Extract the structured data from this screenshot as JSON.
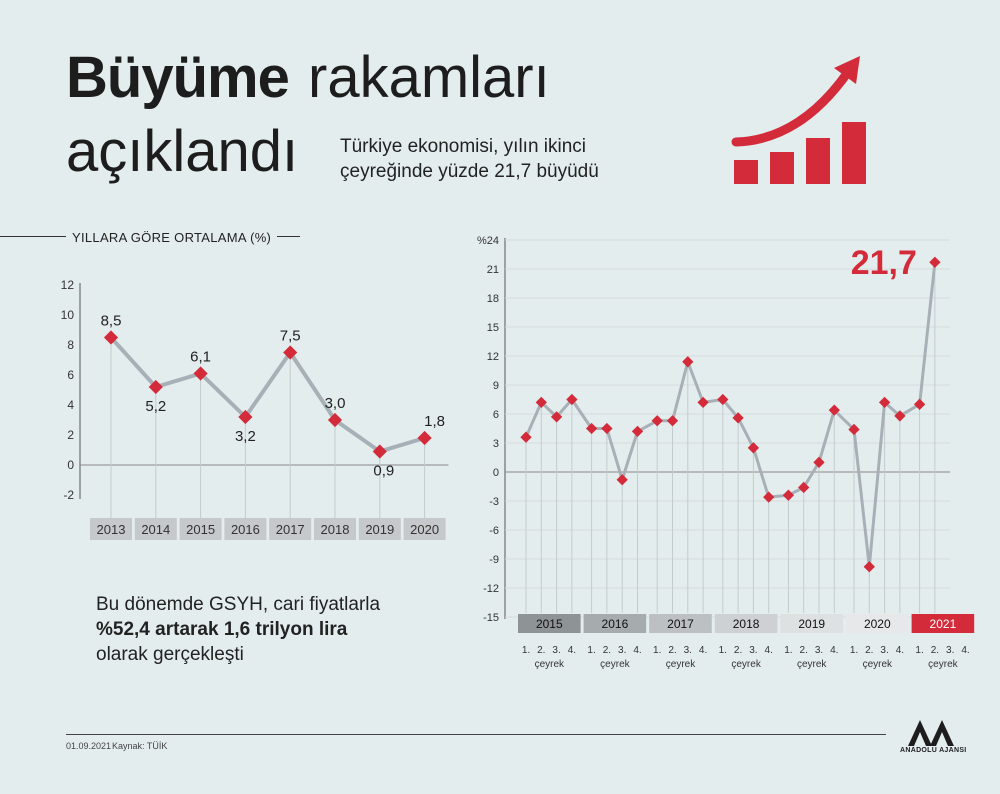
{
  "header": {
    "title_bold": "Büyüme",
    "title_light": "rakamları",
    "title_line2": "açıklandı",
    "subtitle_line1": "Türkiye ekonomisi, yılın ikinci",
    "subtitle_line2": "çeyreğinde yüzde 21,7 büyüdü"
  },
  "section_label": "YILLARA GÖRE ORTALAMA (%)",
  "note": {
    "part1": "Bu dönemde GSYH, cari fiyatlarla ",
    "bold1": "%52,4 artarak 1,6 trilyon lira",
    "part2": " olarak gerçekleşti"
  },
  "footer": {
    "date": "01.09.2021",
    "source": "Kaynak: TÜİK"
  },
  "logo": {
    "text": "ANADOLU AJANSI"
  },
  "colors": {
    "accent": "#d42b3b",
    "line": "#a7b0b6",
    "marker": "#d42b3b",
    "background": "#e4edee"
  },
  "icon": "growth-bars-arrow-icon",
  "chart_data": [
    {
      "type": "line",
      "title": "YILLARA GÖRE ORTALAMA (%)",
      "categories": [
        "2013",
        "2014",
        "2015",
        "2016",
        "2017",
        "2018",
        "2019",
        "2020"
      ],
      "values": [
        8.5,
        5.2,
        6.1,
        3.2,
        7.5,
        3.0,
        0.9,
        1.8
      ],
      "value_labels": [
        "8,5",
        "5,2",
        "6,1",
        "3,2",
        "7,5",
        "3,0",
        "0,9",
        "1,8"
      ],
      "ylim": [
        -2,
        12
      ],
      "yticks": [
        "-2",
        "0",
        "2",
        "4",
        "6",
        "8",
        "10",
        "12"
      ]
    },
    {
      "type": "line",
      "ylabel": "%",
      "ylim": [
        -15,
        24
      ],
      "yticks": [
        "-15",
        "-12",
        "-9",
        "-6",
        "-3",
        "0",
        "3",
        "6",
        "9",
        "12",
        "15",
        "18",
        "21",
        "24"
      ],
      "years": [
        "2015",
        "2016",
        "2017",
        "2018",
        "2019",
        "2020",
        "2021"
      ],
      "quarter_labels": [
        "1.",
        "2.",
        "3.",
        "4."
      ],
      "quarter_word": "çeyrek",
      "values": [
        3.6,
        7.2,
        5.7,
        7.5,
        4.5,
        4.5,
        -0.8,
        4.2,
        5.3,
        5.3,
        11.4,
        7.2,
        7.5,
        5.6,
        2.5,
        -2.6,
        -2.4,
        -1.6,
        1.0,
        6.4,
        4.4,
        -9.8,
        7.2,
        5.8,
        7.0,
        21.7
      ],
      "highlight_label": "21,7"
    }
  ]
}
